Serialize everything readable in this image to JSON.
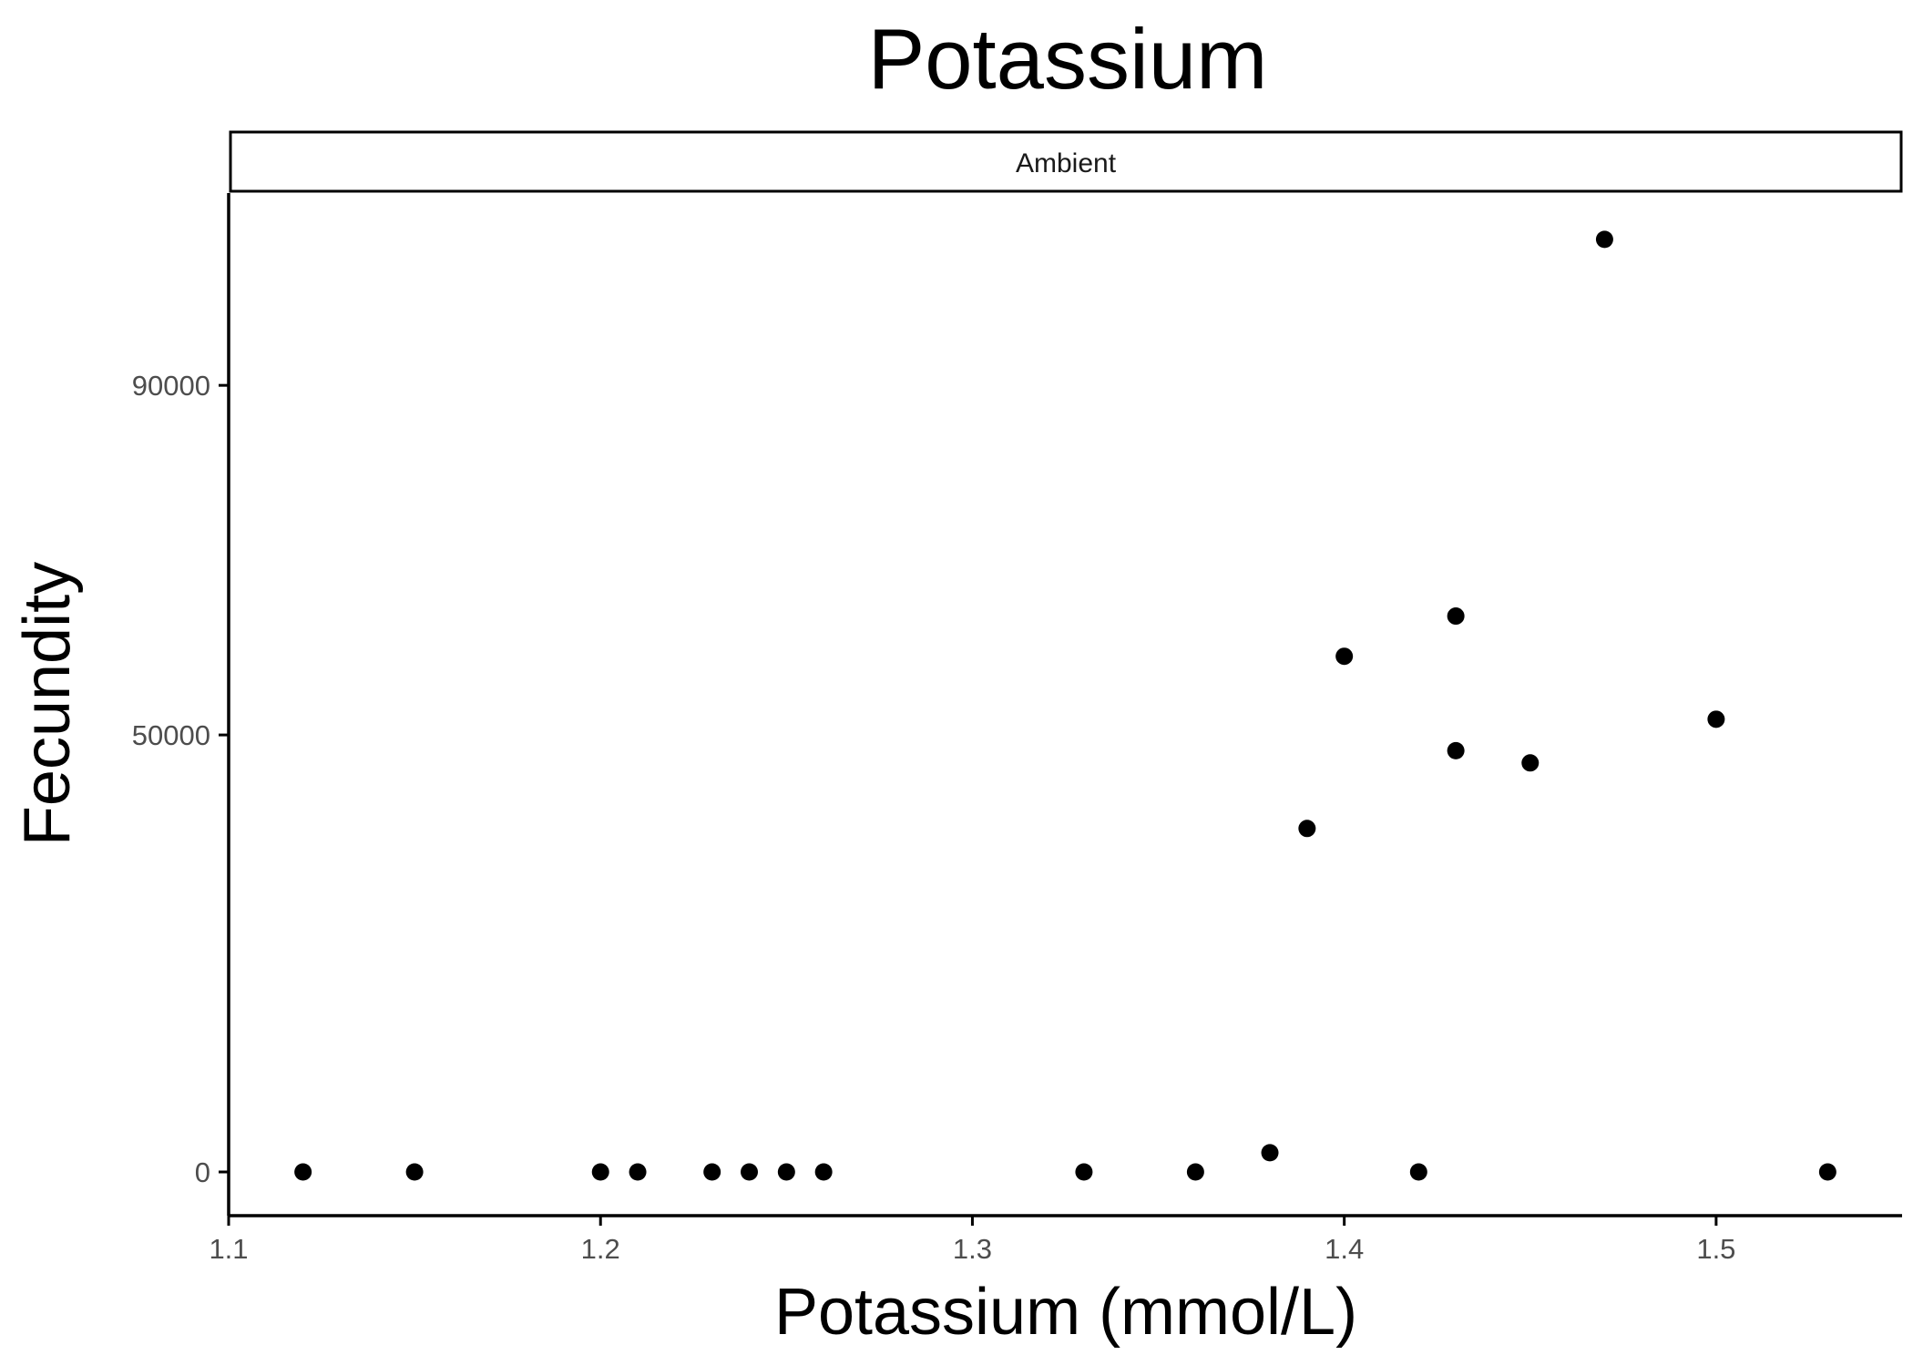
{
  "chart_data": {
    "type": "scatter",
    "title": "Potassium",
    "facet_label": "Ambient",
    "xlabel": "Potassium (mmol/L)",
    "ylabel": "Fecundity",
    "xlim": [
      1.1,
      1.55
    ],
    "ylim": [
      -5000,
      112000
    ],
    "x_ticks": [
      1.1,
      1.2,
      1.3,
      1.4,
      1.5
    ],
    "x_tick_labels": [
      "1.1",
      "1.2",
      "1.3",
      "1.4",
      "1.5"
    ],
    "y_ticks": [
      0,
      50000,
      90000
    ],
    "y_tick_labels": [
      "0",
      "50000",
      "90000"
    ],
    "grid": false,
    "legend": "none",
    "point_color": "#000000",
    "points": [
      {
        "x": 1.12,
        "y": 0
      },
      {
        "x": 1.15,
        "y": 0
      },
      {
        "x": 1.2,
        "y": 0
      },
      {
        "x": 1.21,
        "y": 0
      },
      {
        "x": 1.23,
        "y": 0
      },
      {
        "x": 1.24,
        "y": 0
      },
      {
        "x": 1.25,
        "y": 0
      },
      {
        "x": 1.26,
        "y": 0
      },
      {
        "x": 1.33,
        "y": 0
      },
      {
        "x": 1.36,
        "y": 0
      },
      {
        "x": 1.38,
        "y": 2200
      },
      {
        "x": 1.39,
        "y": 39300
      },
      {
        "x": 1.4,
        "y": 59000
      },
      {
        "x": 1.42,
        "y": 0
      },
      {
        "x": 1.43,
        "y": 63600
      },
      {
        "x": 1.43,
        "y": 48200
      },
      {
        "x": 1.45,
        "y": 46800
      },
      {
        "x": 1.47,
        "y": 106700
      },
      {
        "x": 1.5,
        "y": 51800
      },
      {
        "x": 1.53,
        "y": 0
      }
    ]
  }
}
